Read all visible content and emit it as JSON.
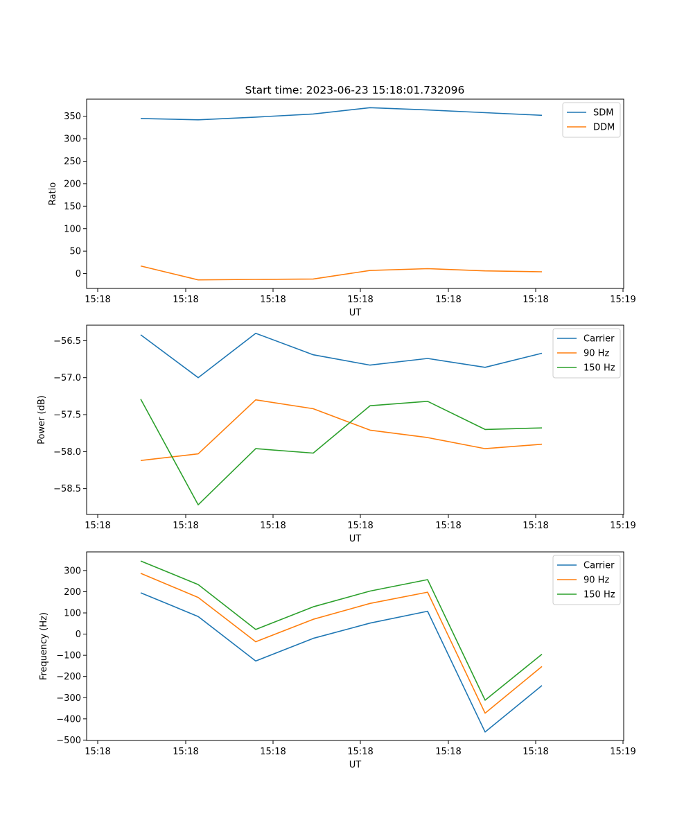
{
  "figure": {
    "title": "Start time: 2023-06-23 15:18:01.732096"
  },
  "chart_data": [
    {
      "type": "line",
      "xlabel": "UT",
      "ylabel": "Ratio",
      "x_ticks": [
        "15:18",
        "15:18",
        "15:18",
        "15:18",
        "15:18",
        "15:18",
        "15:19"
      ],
      "ylim": [
        -33,
        388
      ],
      "y_ticks": [
        0,
        50,
        100,
        150,
        200,
        250,
        300,
        350
      ],
      "grid": false,
      "legend_position": "top-right",
      "series": [
        {
          "name": "SDM",
          "color": "#1f77b4",
          "values": [
            345,
            342,
            348,
            355,
            369,
            364,
            358,
            352
          ]
        },
        {
          "name": "DDM",
          "color": "#ff7f0e",
          "values": [
            17,
            -14,
            -13,
            -12,
            7,
            11,
            6,
            4
          ]
        }
      ]
    },
    {
      "type": "line",
      "xlabel": "UT",
      "ylabel": "Power (dB)",
      "x_ticks": [
        "15:18",
        "15:18",
        "15:18",
        "15:18",
        "15:18",
        "15:18",
        "15:19"
      ],
      "ylim": [
        -58.85,
        -56.29
      ],
      "y_ticks": [
        -58.5,
        -58.0,
        -57.5,
        -57.0,
        -56.5
      ],
      "grid": false,
      "legend_position": "top-right",
      "series": [
        {
          "name": "Carrier",
          "color": "#1f77b4",
          "values": [
            -56.42,
            -57.0,
            -56.4,
            -56.69,
            -56.83,
            -56.74,
            -56.86,
            -56.67
          ]
        },
        {
          "name": "90 Hz",
          "color": "#ff7f0e",
          "values": [
            -58.12,
            -58.03,
            -57.3,
            -57.42,
            -57.71,
            -57.81,
            -57.96,
            -57.9
          ]
        },
        {
          "name": "150 Hz",
          "color": "#2ca02c",
          "values": [
            -57.29,
            -58.72,
            -57.96,
            -58.02,
            -57.38,
            -57.32,
            -57.7,
            -57.68
          ]
        }
      ]
    },
    {
      "type": "line",
      "xlabel": "UT",
      "ylabel": "Frequency (Hz)",
      "x_ticks": [
        "15:18",
        "15:18",
        "15:18",
        "15:18",
        "15:18",
        "15:18",
        "15:19"
      ],
      "ylim": [
        -502,
        388
      ],
      "y_ticks": [
        -500,
        -400,
        -300,
        -200,
        -100,
        0,
        100,
        200,
        300
      ],
      "grid": false,
      "legend_position": "top-right",
      "series": [
        {
          "name": "Carrier",
          "color": "#1f77b4",
          "values": [
            195,
            83,
            -127,
            -20,
            52,
            108,
            -462,
            -243
          ]
        },
        {
          "name": "90 Hz",
          "color": "#ff7f0e",
          "values": [
            287,
            173,
            -36,
            70,
            145,
            198,
            -373,
            -153
          ]
        },
        {
          "name": "150 Hz",
          "color": "#2ca02c",
          "values": [
            345,
            234,
            22,
            129,
            203,
            257,
            -312,
            -95
          ]
        }
      ]
    }
  ]
}
